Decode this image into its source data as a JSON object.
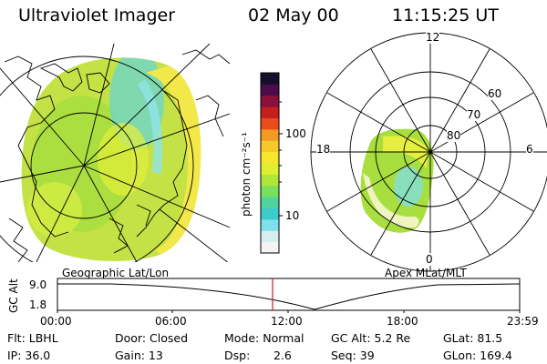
{
  "header": {
    "instrument": "Ultraviolet Imager",
    "date": "02 May 00",
    "time": "11:15:25 UT"
  },
  "colorbar": {
    "unit_label": "photon cm⁻²s⁻¹",
    "tick_labels": [
      "100",
      "10"
    ],
    "colors": [
      "#f4f4f4",
      "#d6eef2",
      "#7ee0ea",
      "#3ecbcc",
      "#4fd4a0",
      "#7ae05a",
      "#aee63a",
      "#dfef30",
      "#f7e62c",
      "#f7c82a",
      "#f39a24",
      "#e84c1c",
      "#c41e1e",
      "#8c103c",
      "#4c0c4c",
      "#14102c"
    ]
  },
  "left_panel": {
    "caption": "Geographic Lat/Lon"
  },
  "right_panel": {
    "caption": "Apex MLat/MLT",
    "hour_labels": [
      "12",
      "18",
      "6",
      "0"
    ],
    "lat_labels": [
      "60",
      "70",
      "80"
    ]
  },
  "altitude_plot": {
    "axis_label": "GC Alt",
    "y_labels": [
      "9.0",
      "1.8"
    ],
    "time_ticks": [
      "00:00",
      "06:00",
      "12:00",
      "18:00",
      "23:59"
    ],
    "current_marker_color": "#c0202a"
  },
  "info": {
    "flt": "Flt: LBHL",
    "ip": "IP: 36.0",
    "door": "Door: Closed",
    "gain": "Gain: 13",
    "mode": "Mode: Normal",
    "dsp_label": "Dsp:",
    "dsp_value": "2.6",
    "gc_alt": "GC Alt: 5.2 Re",
    "seq": "Seq: 39",
    "glat": "GLat: 81.5",
    "glon": "GLon: 169.4"
  }
}
